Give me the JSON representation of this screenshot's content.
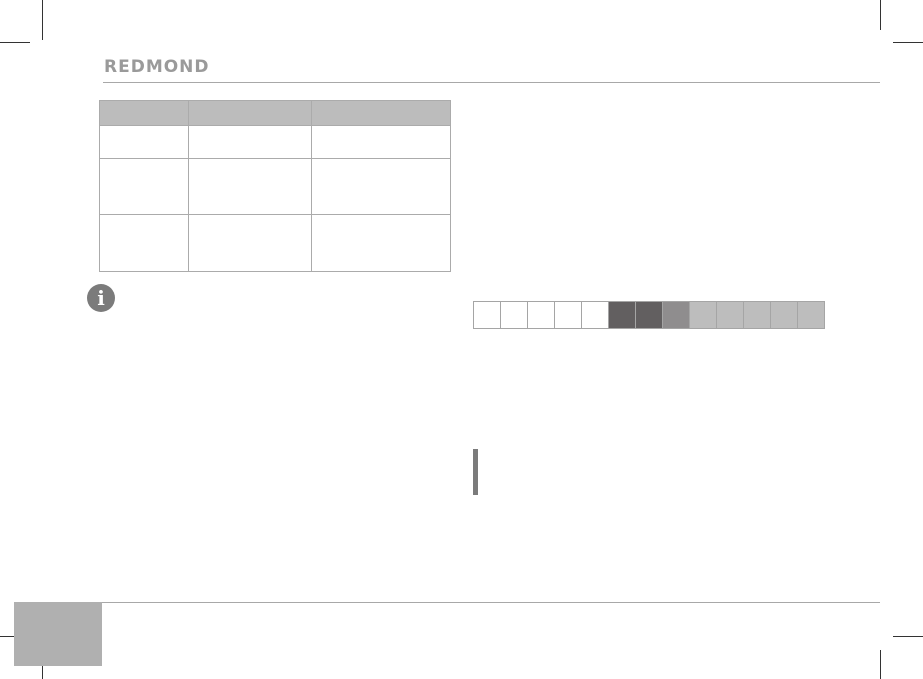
{
  "header": {
    "logo_text": "REDMOND"
  },
  "table": {
    "rows": 3,
    "columns": 3
  },
  "info_icon": {
    "name": "info-icon",
    "glyph": "i"
  },
  "indicator_strip": {
    "cells": [
      "#ffffff",
      "#ffffff",
      "#ffffff",
      "#ffffff",
      "#ffffff",
      "#625f60",
      "#625f60",
      "#8f8d8e",
      "#bdbdbd",
      "#bdbdbd",
      "#bdbdbd",
      "#bdbdbd",
      "#bdbdbd"
    ]
  },
  "colors": {
    "accent_gray": "#7b7b7b",
    "header_fill": "#bcbcbc",
    "page_box": "#b0b0b0"
  }
}
